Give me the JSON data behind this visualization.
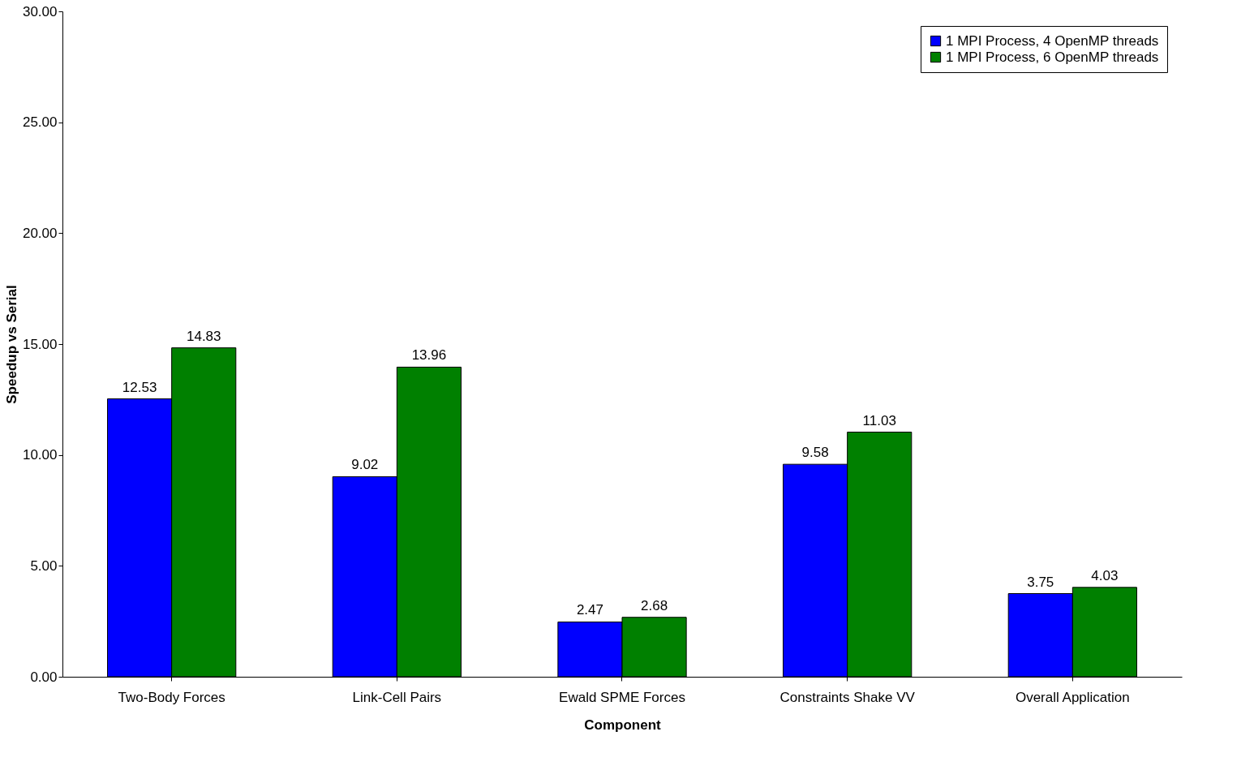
{
  "chart_data": {
    "type": "bar",
    "xlabel": "Component",
    "ylabel": "Speedup vs Serial",
    "categories": [
      "Two-Body Forces",
      "Link-Cell Pairs",
      "Ewald SPME Forces",
      "Constraints Shake VV",
      "Overall Application"
    ],
    "series": [
      {
        "name": "1 MPI Process, 4 OpenMP threads",
        "color": "#0000ff",
        "values": [
          12.53,
          9.02,
          2.47,
          9.58,
          3.75
        ]
      },
      {
        "name": "1 MPI Process, 6 OpenMP threads",
        "color": "#008000",
        "values": [
          14.83,
          13.96,
          2.68,
          11.03,
          4.03
        ]
      }
    ],
    "ylim": [
      0,
      30
    ],
    "yticks": [
      {
        "value": 0,
        "label": "0.00"
      },
      {
        "value": 5,
        "label": "5.00"
      },
      {
        "value": 10,
        "label": "10.00"
      },
      {
        "value": 15,
        "label": "15.00"
      },
      {
        "value": 20,
        "label": "20.00"
      },
      {
        "value": 25,
        "label": "25.00"
      },
      {
        "value": 30,
        "label": "30.00"
      }
    ],
    "data_labels": true,
    "grid": false,
    "legend": "top right"
  }
}
